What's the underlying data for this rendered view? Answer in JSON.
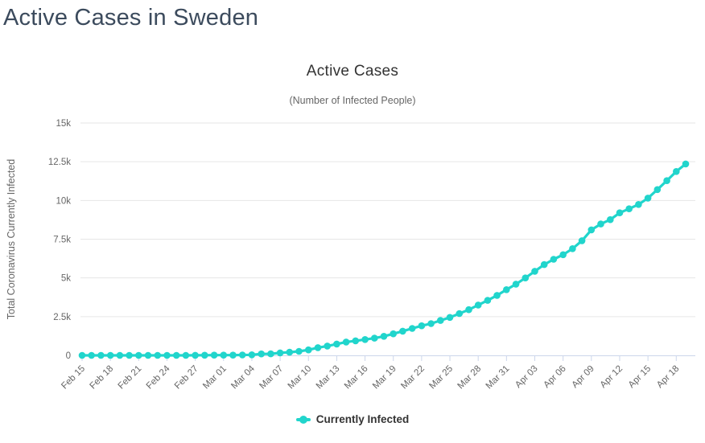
{
  "page": {
    "title": "Active Cases in Sweden"
  },
  "legend": {
    "label": "Currently Infected"
  },
  "colors": {
    "accent": "#21d5cc",
    "page_title_text": "#3c4b5d",
    "chart_text": "#333333",
    "muted_text": "#666666",
    "gridline": "#e6e6e6",
    "axis_line": "#ccd6eb"
  },
  "chart_data": {
    "type": "line",
    "title": "Active Cases",
    "subtitle": "(Number of Infected People)",
    "xlabel": "",
    "ylabel": "Total Coronavirus Currently Infected",
    "ylim": [
      0,
      15000
    ],
    "ytick_values": [
      0,
      2500,
      5000,
      7500,
      10000,
      12500,
      15000
    ],
    "ytick_labels": [
      "0",
      "2.5k",
      "5k",
      "7.5k",
      "10k",
      "12.5k",
      "15k"
    ],
    "grid": true,
    "legend_position": "bottom",
    "x_tick_every": 3,
    "x_tick_rotation": -45,
    "x": [
      "Feb 15",
      "Feb 16",
      "Feb 17",
      "Feb 18",
      "Feb 19",
      "Feb 20",
      "Feb 21",
      "Feb 22",
      "Feb 23",
      "Feb 24",
      "Feb 25",
      "Feb 26",
      "Feb 27",
      "Feb 28",
      "Feb 29",
      "Mar 01",
      "Mar 02",
      "Mar 03",
      "Mar 04",
      "Mar 05",
      "Mar 06",
      "Mar 07",
      "Mar 08",
      "Mar 09",
      "Mar 10",
      "Mar 11",
      "Mar 12",
      "Mar 13",
      "Mar 14",
      "Mar 15",
      "Mar 16",
      "Mar 17",
      "Mar 18",
      "Mar 19",
      "Mar 20",
      "Mar 21",
      "Mar 22",
      "Mar 23",
      "Mar 24",
      "Mar 25",
      "Mar 26",
      "Mar 27",
      "Mar 28",
      "Mar 29",
      "Mar 30",
      "Mar 31",
      "Apr 01",
      "Apr 02",
      "Apr 03",
      "Apr 04",
      "Apr 05",
      "Apr 06",
      "Apr 07",
      "Apr 08",
      "Apr 09",
      "Apr 10",
      "Apr 11",
      "Apr 12",
      "Apr 13",
      "Apr 14",
      "Apr 15",
      "Apr 16",
      "Apr 17",
      "Apr 18",
      "Apr 19"
    ],
    "series": [
      {
        "name": "Currently Infected",
        "color": "#21d5cc",
        "marker": "circle",
        "values": [
          1,
          1,
          1,
          1,
          1,
          1,
          1,
          1,
          1,
          1,
          1,
          2,
          7,
          11,
          13,
          14,
          15,
          24,
          35,
          94,
          101,
          161,
          203,
          261,
          355,
          500,
          600,
          730,
          860,
          940,
          1020,
          1110,
          1230,
          1390,
          1560,
          1740,
          1910,
          2050,
          2250,
          2450,
          2700,
          2950,
          3250,
          3550,
          3870,
          4240,
          4600,
          5000,
          5430,
          5860,
          6200,
          6500,
          6890,
          7400,
          8100,
          8480,
          8760,
          9200,
          9460,
          9740,
          10150,
          10700,
          11280,
          11870,
          12360
        ]
      }
    ]
  }
}
